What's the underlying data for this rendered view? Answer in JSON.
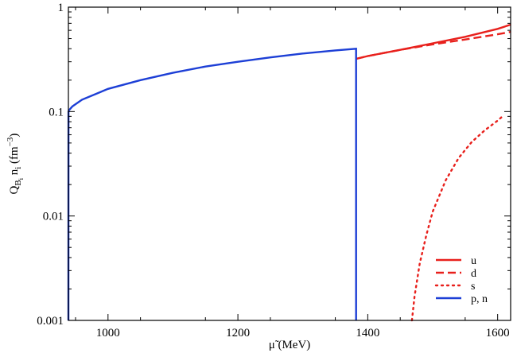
{
  "chart_data": {
    "type": "line",
    "xlabel": "μ̃ (MeV)",
    "ylabel": {
      "base": "Q",
      "sub1": "B",
      "subsub": "i",
      "mid": " n",
      "sub2": "i",
      "unit_open": " (fm",
      "unit_exp": "−3",
      "unit_close": ")"
    },
    "xlim": [
      939,
      1620
    ],
    "ylim": [
      0.001,
      1
    ],
    "yscale": "log",
    "xticks": [
      1000,
      1200,
      1400,
      1600
    ],
    "xtick_labels": [
      "1000",
      "1200",
      "1400",
      "1600"
    ],
    "yticks": [
      0.001,
      0.01,
      0.1,
      1
    ],
    "ytick_labels": [
      "0.001",
      "0.01",
      "0.1",
      "1"
    ],
    "legend_position": "bottom-right",
    "series": [
      {
        "name": "u",
        "style": "solid",
        "color": "#e8201c",
        "x": [
          1382,
          1400,
          1450,
          1500,
          1550,
          1600,
          1620
        ],
        "y": [
          0.32,
          0.34,
          0.39,
          0.45,
          0.52,
          0.62,
          0.68
        ]
      },
      {
        "name": "d",
        "style": "dashed",
        "color": "#e8201c",
        "x": [
          1382,
          1400,
          1450,
          1500,
          1550,
          1600,
          1620
        ],
        "y": [
          0.32,
          0.34,
          0.39,
          0.44,
          0.49,
          0.55,
          0.58
        ]
      },
      {
        "name": "s",
        "style": "dotted",
        "color": "#e8201c",
        "x": [
          1468,
          1472,
          1480,
          1490,
          1500,
          1520,
          1540,
          1560,
          1580,
          1600,
          1610
        ],
        "y": [
          0.001,
          0.0017,
          0.0035,
          0.0065,
          0.011,
          0.022,
          0.036,
          0.051,
          0.066,
          0.082,
          0.093
        ]
      },
      {
        "name": "p, n",
        "style": "solid",
        "color": "#1d3fd6",
        "x": [
          939,
          939.1,
          940,
          945,
          960,
          1000,
          1050,
          1100,
          1150,
          1200,
          1250,
          1300,
          1350,
          1382,
          1382
        ],
        "y": [
          0.001,
          0.1,
          0.103,
          0.112,
          0.13,
          0.165,
          0.2,
          0.235,
          0.27,
          0.3,
          0.33,
          0.36,
          0.385,
          0.4,
          0.001
        ]
      }
    ]
  }
}
